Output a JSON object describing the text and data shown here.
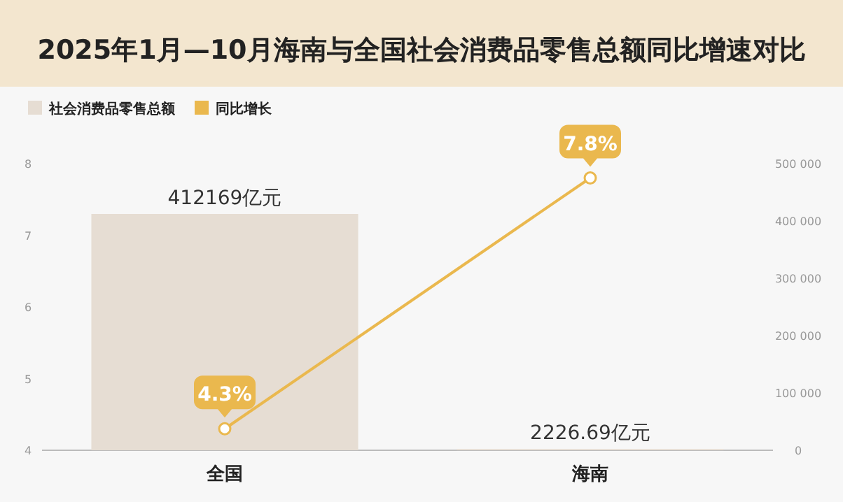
{
  "chart_data": {
    "type": "bar",
    "title": "2025年1月—10月海南与全国社会消费品零售总额同比增速对比",
    "categories": [
      "全国",
      "海南"
    ],
    "series": [
      {
        "name": "社会消费品零售总额",
        "axis": "y2",
        "color": "#e6ddd3",
        "values": [
          412169,
          2226.69
        ],
        "value_labels": [
          "412169亿元",
          "2226.69亿元"
        ]
      },
      {
        "name": "同比增长",
        "type": "line",
        "color": "#eab84e",
        "values": [
          4.3,
          7.8
        ],
        "value_labels": [
          "4.3%",
          "7.8%"
        ],
        "marker": "circle"
      }
    ],
    "ylim": [
      4,
      8
    ],
    "yticks": [
      4,
      5,
      6,
      7,
      8
    ],
    "y2lim": [
      0,
      500000
    ],
    "y2ticks": [
      0,
      {
        "value": 100000,
        "label": "100 000"
      },
      {
        "value": 200000,
        "label": "200 000"
      },
      {
        "value": 300000,
        "label": "300 000"
      },
      {
        "value": 400000,
        "label": "400 000"
      },
      {
        "value": 500000,
        "label": "500 000"
      }
    ],
    "legend": "top left",
    "grid": false
  }
}
